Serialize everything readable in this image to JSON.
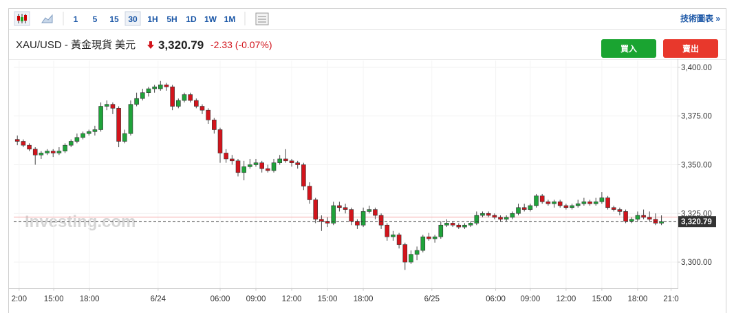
{
  "header": {
    "intervals": [
      "1",
      "5",
      "15",
      "30",
      "1H",
      "5H",
      "1D",
      "1W",
      "1M"
    ],
    "tech_link": "技術圖表 »",
    "symbol": "XAU/USD - 黃金現貨 美元",
    "change": "-2.33 (-0.07%)",
    "buy": "買入",
    "sell": "賣出",
    "watermark": "Investing.com"
  },
  "chart_data": {
    "type": "candlestick",
    "up_color": "#1fa33a",
    "down_color": "#d2141c",
    "current_price": {
      "value": 3320.79,
      "label": "3,320.79"
    },
    "prev_close": 3323.12,
    "ylim": [
      3286.7,
      3406
    ],
    "yticks": [
      {
        "value": 3300,
        "label": "3,300.00"
      },
      {
        "value": 3325,
        "label": "3,325.00"
      },
      {
        "value": 3350,
        "label": "3,350.00"
      },
      {
        "value": 3375,
        "label": "3,375.00"
      },
      {
        "value": 3400,
        "label": "3,400.00"
      }
    ],
    "xlim": [
      -0.6,
      110.7
    ],
    "xticks": [
      {
        "value": 0.3,
        "label": "2:00"
      },
      {
        "value": 6.1,
        "label": "15:00"
      },
      {
        "value": 12.1,
        "label": "18:00"
      },
      {
        "value": 23.6,
        "label": "6/24"
      },
      {
        "value": 34,
        "label": "06:00"
      },
      {
        "value": 40,
        "label": "09:00"
      },
      {
        "value": 46,
        "label": "12:00"
      },
      {
        "value": 52,
        "label": "15:00"
      },
      {
        "value": 58,
        "label": "18:00"
      },
      {
        "value": 69.5,
        "label": "6/25"
      },
      {
        "value": 80.2,
        "label": "06:00"
      },
      {
        "value": 86,
        "label": "09:00"
      },
      {
        "value": 92,
        "label": "12:00"
      },
      {
        "value": 98,
        "label": "15:00"
      },
      {
        "value": 104,
        "label": "18:00"
      },
      {
        "value": 109.6,
        "label": "21:0"
      }
    ],
    "grid": true,
    "ohlc": [
      [
        3363,
        3365,
        3360,
        3362
      ],
      [
        3362,
        3363,
        3359,
        3360
      ],
      [
        3360,
        3361,
        3357,
        3358
      ],
      [
        3358,
        3359,
        3350,
        3355
      ],
      [
        3355,
        3357,
        3353,
        3356
      ],
      [
        3356,
        3358,
        3355,
        3357
      ],
      [
        3357,
        3358,
        3354,
        3356
      ],
      [
        3356,
        3359,
        3355,
        3357
      ],
      [
        3357,
        3361,
        3356,
        3360
      ],
      [
        3360,
        3363,
        3359,
        3362
      ],
      [
        3362,
        3366,
        3361,
        3364
      ],
      [
        3364,
        3367,
        3363,
        3366
      ],
      [
        3366,
        3368,
        3365,
        3367
      ],
      [
        3367,
        3370,
        3365,
        3368
      ],
      [
        3368,
        3382,
        3367,
        3380
      ],
      [
        3380,
        3383,
        3378,
        3381
      ],
      [
        3381,
        3382,
        3376,
        3379
      ],
      [
        3379,
        3380,
        3359,
        3362
      ],
      [
        3362,
        3368,
        3361,
        3366
      ],
      [
        3366,
        3383,
        3365,
        3381
      ],
      [
        3381,
        3387,
        3380,
        3384
      ],
      [
        3384,
        3389,
        3383,
        3387
      ],
      [
        3387,
        3390,
        3385,
        3389
      ],
      [
        3389,
        3391,
        3387,
        3390
      ],
      [
        3389,
        3393,
        3388,
        3391
      ],
      [
        3391,
        3392,
        3388,
        3390
      ],
      [
        3390,
        3391,
        3378,
        3380
      ],
      [
        3380,
        3384,
        3379,
        3383
      ],
      [
        3383,
        3387,
        3382,
        3386
      ],
      [
        3386,
        3387,
        3382,
        3383
      ],
      [
        3383,
        3384,
        3379,
        3380
      ],
      [
        3380,
        3381,
        3376,
        3378
      ],
      [
        3378,
        3379,
        3371,
        3373
      ],
      [
        3373,
        3374,
        3366,
        3368
      ],
      [
        3368,
        3369,
        3351,
        3356
      ],
      [
        3356,
        3358,
        3351,
        3353
      ],
      [
        3353,
        3355,
        3350,
        3352
      ],
      [
        3352,
        3353,
        3344,
        3346
      ],
      [
        3346,
        3352,
        3342,
        3349
      ],
      [
        3349,
        3353,
        3348,
        3350
      ],
      [
        3350,
        3353,
        3349,
        3351
      ],
      [
        3351,
        3352,
        3346,
        3348
      ],
      [
        3348,
        3350,
        3346,
        3347
      ],
      [
        3347,
        3353,
        3346,
        3351
      ],
      [
        3351,
        3355,
        3350,
        3353
      ],
      [
        3353,
        3358,
        3351,
        3352
      ],
      [
        3352,
        3353,
        3349,
        3351
      ],
      [
        3351,
        3352,
        3348,
        3350
      ],
      [
        3350,
        3351,
        3337,
        3339
      ],
      [
        3339,
        3341,
        3330,
        3332
      ],
      [
        3332,
        3333,
        3320,
        3322
      ],
      [
        3322,
        3324,
        3316,
        3321
      ],
      [
        3321,
        3323,
        3318,
        3320
      ],
      [
        3320,
        3331,
        3319,
        3329
      ],
      [
        3329,
        3331,
        3326,
        3328
      ],
      [
        3328,
        3330,
        3325,
        3327
      ],
      [
        3327,
        3328,
        3319,
        3321
      ],
      [
        3321,
        3322,
        3317,
        3319
      ],
      [
        3319,
        3328,
        3318,
        3326
      ],
      [
        3326,
        3329,
        3325,
        3327
      ],
      [
        3327,
        3328,
        3322,
        3324
      ],
      [
        3324,
        3325,
        3317,
        3319
      ],
      [
        3319,
        3320,
        3311,
        3313
      ],
      [
        3313,
        3316,
        3311,
        3314
      ],
      [
        3314,
        3315,
        3307,
        3309
      ],
      [
        3309,
        3310,
        3296,
        3300
      ],
      [
        3300,
        3306,
        3299,
        3304
      ],
      [
        3304,
        3308,
        3301,
        3306
      ],
      [
        3306,
        3314,
        3305,
        3313
      ],
      [
        3313,
        3315,
        3311,
        3312
      ],
      [
        3312,
        3314,
        3310,
        3313
      ],
      [
        3313,
        3321,
        3312,
        3319
      ],
      [
        3319,
        3322,
        3318,
        3320
      ],
      [
        3320,
        3321,
        3318,
        3319
      ],
      [
        3319,
        3320,
        3317,
        3318
      ],
      [
        3318,
        3320,
        3317,
        3319
      ],
      [
        3319,
        3321,
        3318,
        3320
      ],
      [
        3320,
        3326,
        3319,
        3324
      ],
      [
        3324,
        3326,
        3323,
        3325
      ],
      [
        3325,
        3326,
        3323,
        3324
      ],
      [
        3324,
        3325,
        3322,
        3323
      ],
      [
        3323,
        3324,
        3321,
        3322
      ],
      [
        3322,
        3324,
        3321,
        3323
      ],
      [
        3323,
        3326,
        3322,
        3325
      ],
      [
        3325,
        3330,
        3324,
        3328
      ],
      [
        3328,
        3330,
        3326,
        3327
      ],
      [
        3327,
        3330,
        3326,
        3329
      ],
      [
        3329,
        3335,
        3328,
        3334
      ],
      [
        3334,
        3335,
        3330,
        3331
      ],
      [
        3331,
        3332,
        3329,
        3330
      ],
      [
        3330,
        3332,
        3328,
        3331
      ],
      [
        3331,
        3332,
        3328,
        3329
      ],
      [
        3329,
        3330,
        3327,
        3328
      ],
      [
        3328,
        3330,
        3327,
        3329
      ],
      [
        3329,
        3332,
        3328,
        3330
      ],
      [
        3330,
        3333,
        3329,
        3331
      ],
      [
        3331,
        3332,
        3329,
        3330
      ],
      [
        3330,
        3333,
        3329,
        3331
      ],
      [
        3331,
        3336,
        3330,
        3333
      ],
      [
        3333,
        3334,
        3327,
        3328
      ],
      [
        3328,
        3329,
        3326,
        3327
      ],
      [
        3327,
        3328,
        3324,
        3326
      ],
      [
        3326,
        3327,
        3320,
        3321
      ],
      [
        3321,
        3323,
        3320,
        3322
      ],
      [
        3322,
        3326,
        3321,
        3324
      ],
      [
        3324,
        3327,
        3322,
        3323
      ],
      [
        3323,
        3326,
        3321,
        3322
      ],
      [
        3322,
        3325,
        3319,
        3320
      ],
      [
        3320,
        3324,
        3319,
        3320.79
      ]
    ]
  }
}
